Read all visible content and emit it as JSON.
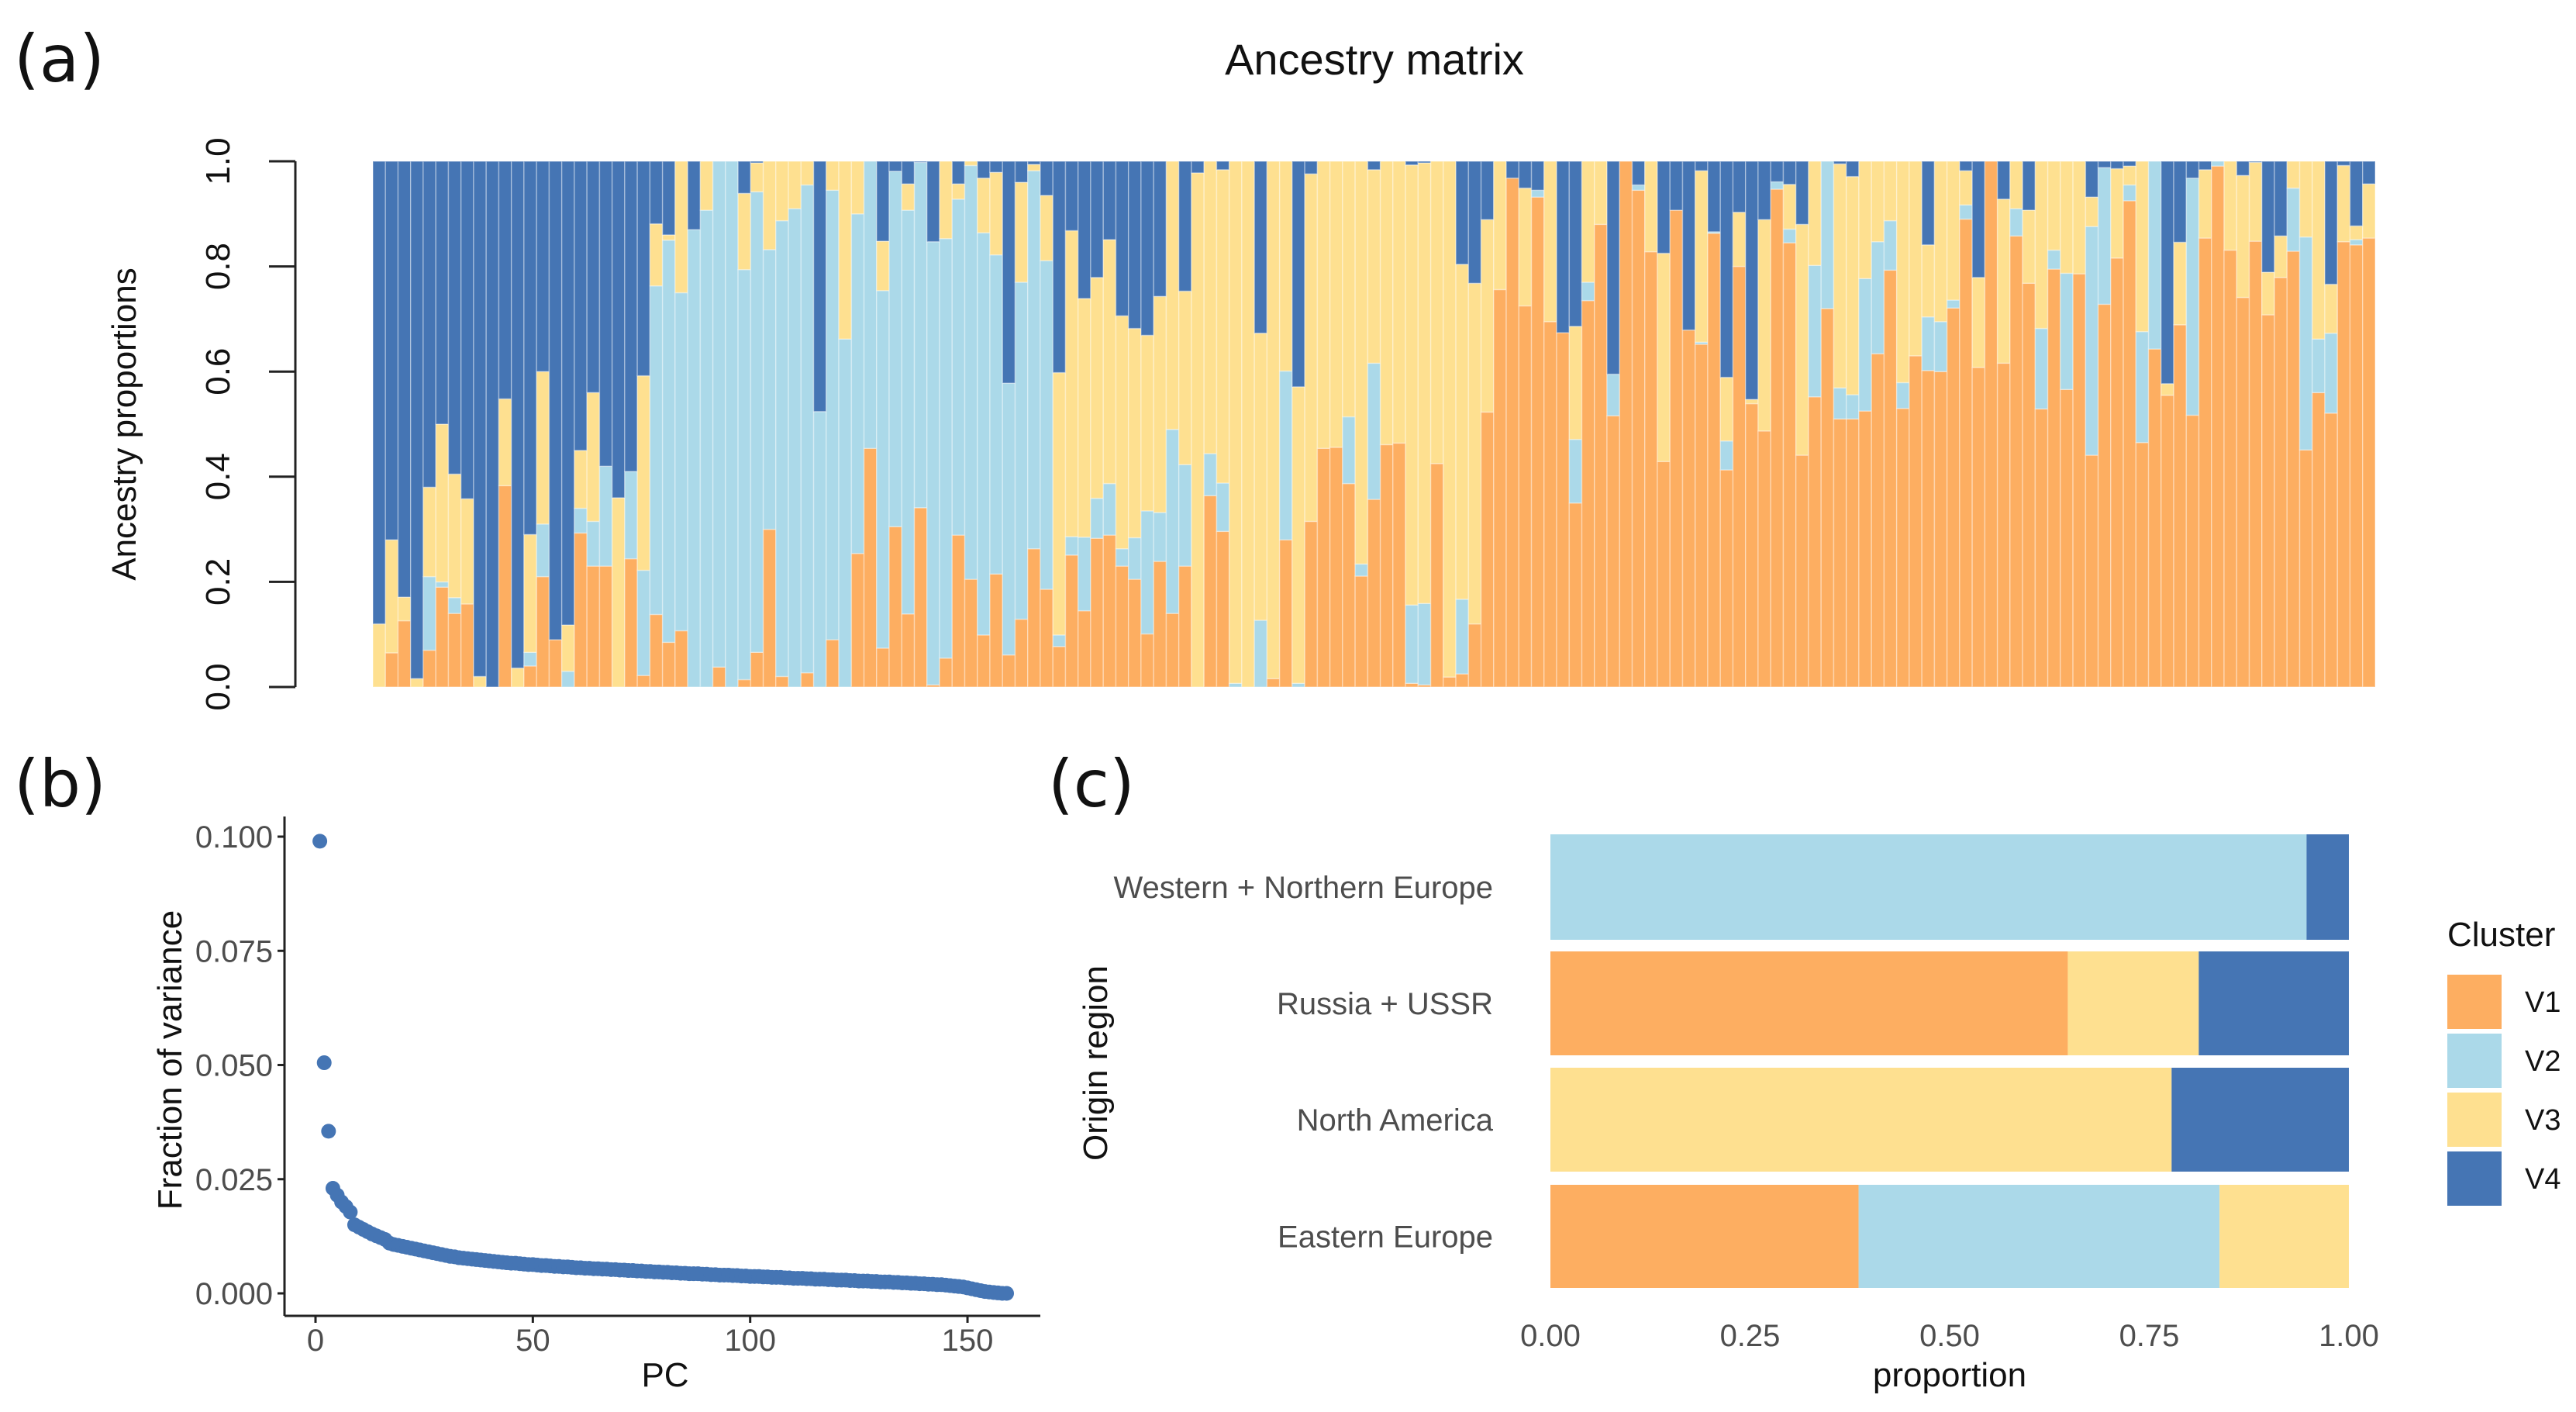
{
  "colors": {
    "V1": "#fdae61",
    "V2": "#abd9e9",
    "V3": "#fee090",
    "V4": "#4575b4"
  },
  "chart_data": [
    {
      "panel": "(a)",
      "type": "bar",
      "stacked": true,
      "title": "Ancestry matrix",
      "xlabel": "",
      "ylabel": "Ancestry proportions",
      "ylim": [
        0,
        1
      ],
      "yticks": [
        "0.0",
        "0.2",
        "0.4",
        "0.6",
        "0.8",
        "1.0"
      ],
      "series_order": [
        "V1",
        "V2",
        "V3",
        "V4"
      ],
      "values": [
        [
          0,
          0,
          0.12,
          0.88
        ],
        [
          0.065,
          0,
          0.215,
          0.72
        ],
        [
          0.126,
          0,
          0.045,
          0.829
        ],
        [
          0,
          0,
          0.016,
          0.984
        ],
        [
          0.07,
          0.14,
          0.17,
          0.62
        ],
        [
          0.19,
          0.01,
          0.3,
          0.5
        ],
        [
          0.14,
          0.03,
          0.235,
          0.595
        ],
        [
          0.158,
          0,
          0.2,
          0.642
        ],
        [
          0,
          0,
          0.02,
          0.98
        ],
        [
          0,
          0,
          0,
          1
        ],
        [
          0.383,
          0,
          0.165,
          0.452
        ],
        [
          0,
          0,
          0.036,
          0.964
        ],
        [
          0.04,
          0.026,
          0.224,
          0.71
        ],
        [
          0.21,
          0.1,
          0.29,
          0.4
        ],
        [
          0.09,
          0,
          0,
          0.91
        ],
        [
          0,
          0.03,
          0.088,
          0.882
        ],
        [
          0.293,
          0.047,
          0.11,
          0.55
        ],
        [
          0.23,
          0.085,
          0.245,
          0.44
        ],
        [
          0.23,
          0.19,
          0,
          0.58
        ],
        [
          0,
          0,
          0.36,
          0.64
        ],
        [
          0.244,
          0.166,
          0,
          0.59
        ],
        [
          0.022,
          0.2,
          0.37,
          0.408
        ],
        [
          0.138,
          0.625,
          0.118,
          0.119
        ],
        [
          0.085,
          0.765,
          0.01,
          0.14
        ],
        [
          0.107,
          0.643,
          0.25,
          0
        ],
        [
          0,
          0.87,
          0,
          0.13
        ],
        [
          0,
          0.907,
          0.093,
          0
        ],
        [
          0.038,
          0.962,
          0,
          0
        ],
        [
          0,
          1,
          0,
          0
        ],
        [
          0.014,
          0.78,
          0.145,
          0.061
        ],
        [
          0.066,
          0.876,
          0.055,
          0.003
        ],
        [
          0.3,
          0.532,
          0.168,
          0
        ],
        [
          0.02,
          0.867,
          0.113,
          0
        ],
        [
          0,
          0.91,
          0.09,
          0
        ],
        [
          0.027,
          0.928,
          0.045,
          0
        ],
        [
          0,
          0.524,
          0,
          0.476
        ],
        [
          0.09,
          0.855,
          0.055,
          0
        ],
        [
          0,
          0.662,
          0.338,
          0
        ],
        [
          0.254,
          0.646,
          0.1,
          0
        ],
        [
          0.454,
          0.546,
          0,
          0
        ],
        [
          0.074,
          0.68,
          0.094,
          0.152
        ],
        [
          0.305,
          0.676,
          0,
          0.019
        ],
        [
          0.139,
          0.768,
          0.05,
          0.043
        ],
        [
          0.341,
          0.657,
          0,
          0.002
        ],
        [
          0.004,
          0.843,
          0,
          0.153
        ],
        [
          0.055,
          0.798,
          0.147,
          0
        ],
        [
          0.289,
          0.639,
          0.029,
          0.043
        ],
        [
          0.205,
          0.787,
          0.008,
          0
        ],
        [
          0.099,
          0.765,
          0.104,
          0.032
        ],
        [
          0.215,
          0.607,
          0.157,
          0.021
        ],
        [
          0.061,
          0.517,
          0,
          0.422
        ],
        [
          0.129,
          0.641,
          0.19,
          0.04
        ],
        [
          0.263,
          0.719,
          0.012,
          0.006
        ],
        [
          0.186,
          0.625,
          0.124,
          0.065
        ],
        [
          0.077,
          0.022,
          0.499,
          0.402
        ],
        [
          0.251,
          0.035,
          0.582,
          0.132
        ],
        [
          0.145,
          0.14,
          0.454,
          0.261
        ],
        [
          0.283,
          0.076,
          0.42,
          0.221
        ],
        [
          0.289,
          0.098,
          0.464,
          0.149
        ],
        [
          0.23,
          0.033,
          0.443,
          0.294
        ],
        [
          0.205,
          0.079,
          0.398,
          0.318
        ],
        [
          0.101,
          0.234,
          0.334,
          0.331
        ],
        [
          0.239,
          0.093,
          0.411,
          0.257
        ],
        [
          0.14,
          0.35,
          0.51,
          0
        ],
        [
          0.23,
          0.193,
          0.33,
          0.247
        ],
        [
          0,
          0,
          0.978,
          0.022
        ],
        [
          0.364,
          0.08,
          0.556,
          0
        ],
        [
          0.296,
          0.092,
          0.596,
          0.016
        ],
        [
          0,
          0.007,
          0.993,
          0
        ],
        [
          0,
          0,
          1,
          0
        ],
        [
          0,
          0.127,
          0.546,
          0.327
        ],
        [
          0.016,
          0,
          0.984,
          0
        ],
        [
          0.28,
          0.321,
          0.399,
          0
        ],
        [
          0,
          0.007,
          0.564,
          0.429
        ],
        [
          0.315,
          0,
          0.661,
          0.024
        ],
        [
          0.454,
          0,
          0.546,
          0
        ],
        [
          0.456,
          0,
          0.544,
          0
        ],
        [
          0.387,
          0.127,
          0.486,
          0
        ],
        [
          0.211,
          0.023,
          0.766,
          0
        ],
        [
          0.357,
          0.259,
          0.368,
          0.016
        ],
        [
          0.461,
          0,
          0.539,
          0
        ],
        [
          0.464,
          0,
          0.536,
          0
        ],
        [
          0.007,
          0.149,
          0.837,
          0.007
        ],
        [
          0.004,
          0.155,
          0.838,
          0.003
        ],
        [
          0.425,
          0,
          0.575,
          0
        ],
        [
          0.019,
          0,
          0.981,
          0
        ],
        [
          0.025,
          0.142,
          0.637,
          0.196
        ],
        [
          0.12,
          0,
          0.648,
          0.232
        ],
        [
          0.523,
          0,
          0.366,
          0.111
        ],
        [
          0.756,
          0,
          0.244,
          0
        ],
        [
          0.968,
          0,
          0,
          0.032
        ],
        [
          0.725,
          0,
          0.224,
          0.051
        ],
        [
          0.932,
          0.013,
          0,
          0.055
        ],
        [
          0.695,
          0,
          0.305,
          0
        ],
        [
          0.674,
          0,
          0,
          0.326
        ],
        [
          0.35,
          0.121,
          0.215,
          0.314
        ],
        [
          0.735,
          0.035,
          0.23,
          0
        ],
        [
          0.88,
          0,
          0.12,
          0
        ],
        [
          0.516,
          0.079,
          0,
          0.405
        ],
        [
          1,
          0,
          0,
          0
        ],
        [
          0.945,
          0.01,
          0,
          0.045
        ],
        [
          0.828,
          0,
          0.172,
          0
        ],
        [
          0.429,
          0,
          0.396,
          0.175
        ],
        [
          0.907,
          0,
          0,
          0.093
        ],
        [
          0.679,
          0,
          0,
          0.321
        ],
        [
          0.652,
          0.004,
          0.326,
          0.018
        ],
        [
          0.863,
          0.003,
          0,
          0.134
        ],
        [
          0.413,
          0.055,
          0.121,
          0.411
        ],
        [
          0.8,
          0,
          0.103,
          0.097
        ],
        [
          0.539,
          0,
          0.008,
          0.453
        ],
        [
          0.487,
          0,
          0.402,
          0.111
        ],
        [
          0.947,
          0.014,
          0,
          0.039
        ],
        [
          0.845,
          0.026,
          0.085,
          0.044
        ],
        [
          0.441,
          0,
          0.439,
          0.12
        ],
        [
          0.552,
          0.25,
          0.198,
          0
        ],
        [
          0.72,
          0.28,
          0,
          0
        ],
        [
          0.51,
          0.059,
          0.426,
          0.005
        ],
        [
          0.51,
          0.046,
          0.415,
          0.029
        ],
        [
          0.525,
          0.252,
          0.223,
          0
        ],
        [
          0.634,
          0.213,
          0.153,
          0
        ],
        [
          0.793,
          0.094,
          0.113,
          0
        ],
        [
          0.53,
          0.049,
          0.421,
          0
        ],
        [
          0.63,
          0,
          0.37,
          0
        ],
        [
          0.602,
          0.102,
          0.137,
          0.159
        ],
        [
          0.6,
          0.095,
          0.305,
          0
        ],
        [
          0.721,
          0.015,
          0.264,
          0
        ],
        [
          0.89,
          0.027,
          0.065,
          0.018
        ],
        [
          0.608,
          0,
          0.171,
          0.221
        ],
        [
          1,
          0,
          0,
          0
        ],
        [
          0.616,
          0,
          0.312,
          0.072
        ],
        [
          0.858,
          0.052,
          0.09,
          0
        ],
        [
          0.768,
          0,
          0.139,
          0.093
        ],
        [
          0.529,
          0.153,
          0.318,
          0
        ],
        [
          0.795,
          0.036,
          0.169,
          0
        ],
        [
          0.566,
          0.221,
          0.213,
          0
        ],
        [
          0.786,
          0,
          0.214,
          0
        ],
        [
          0.441,
          0.435,
          0.056,
          0.068
        ],
        [
          0.728,
          0.26,
          0,
          0.012
        ],
        [
          0.816,
          0,
          0.17,
          0.014
        ],
        [
          0.925,
          0.03,
          0.036,
          0.009
        ],
        [
          0.465,
          0.211,
          0.324,
          0
        ],
        [
          0.643,
          0.357,
          0,
          0
        ],
        [
          0.555,
          0,
          0.022,
          0.423
        ],
        [
          0.689,
          0,
          0.157,
          0.154
        ],
        [
          0.517,
          0.451,
          0,
          0.032
        ],
        [
          0.854,
          0,
          0.13,
          0.016
        ],
        [
          0.991,
          0.009,
          0,
          0
        ],
        [
          0.831,
          0,
          0.169,
          0
        ],
        [
          0.741,
          0,
          0.232,
          0.027
        ],
        [
          0.848,
          0,
          0.15,
          0.002
        ],
        [
          0.708,
          0,
          0.081,
          0.211
        ],
        [
          0.779,
          0,
          0.079,
          0.142
        ],
        [
          0.829,
          0.12,
          0.051,
          0
        ],
        [
          0.451,
          0.405,
          0.144,
          0
        ],
        [
          0.56,
          0.102,
          0.338,
          0
        ],
        [
          0.521,
          0.152,
          0.093,
          0.234
        ],
        [
          0.847,
          0,
          0.145,
          0.008
        ],
        [
          0.841,
          0.01,
          0.026,
          0.123
        ],
        [
          0.854,
          0,
          0.103,
          0.043
        ]
      ]
    },
    {
      "panel": "(b)",
      "type": "scatter",
      "xlabel": "PC",
      "ylabel": "Fraction of variance",
      "xlim": [
        0,
        160
      ],
      "ylim": [
        0,
        0.1
      ],
      "xticks": [
        "0",
        "50",
        "100",
        "150"
      ],
      "yticks": [
        "0.000",
        "0.025",
        "0.050",
        "0.075",
        "0.100"
      ],
      "y": [
        0.099,
        0.0505,
        0.0355,
        0.023,
        0.0215,
        0.02,
        0.019,
        0.0178,
        0.015,
        0.0145,
        0.014,
        0.0135,
        0.013,
        0.0126,
        0.0122,
        0.0118,
        0.011,
        0.0107,
        0.0105,
        0.0103,
        0.0101,
        0.0099,
        0.0097,
        0.0095,
        0.0093,
        0.0091,
        0.0089,
        0.0087,
        0.0085,
        0.0083,
        0.0081,
        0.008,
        0.0078,
        0.0077,
        0.0076,
        0.0075,
        0.0074,
        0.0073,
        0.0072,
        0.0071,
        0.007,
        0.0069,
        0.0068,
        0.0067,
        0.0066,
        0.0066,
        0.0065,
        0.0064,
        0.0063,
        0.0063,
        0.0062,
        0.0061,
        0.0061,
        0.006,
        0.0059,
        0.0059,
        0.0058,
        0.0058,
        0.0057,
        0.0056,
        0.0056,
        0.0055,
        0.0055,
        0.0054,
        0.0054,
        0.0053,
        0.0053,
        0.0052,
        0.0052,
        0.0051,
        0.0051,
        0.005,
        0.005,
        0.0049,
        0.0049,
        0.0048,
        0.0048,
        0.0047,
        0.0047,
        0.0046,
        0.0046,
        0.0045,
        0.0045,
        0.0044,
        0.0044,
        0.0043,
        0.0043,
        0.0043,
        0.0042,
        0.0042,
        0.0041,
        0.0041,
        0.004,
        0.004,
        0.004,
        0.0039,
        0.0039,
        0.0038,
        0.0038,
        0.0037,
        0.0037,
        0.0037,
        0.0036,
        0.0036,
        0.0035,
        0.0035,
        0.0035,
        0.0034,
        0.0034,
        0.0033,
        0.0033,
        0.0033,
        0.0032,
        0.0032,
        0.0031,
        0.0031,
        0.0031,
        0.003,
        0.003,
        0.0029,
        0.0029,
        0.0029,
        0.0028,
        0.0028,
        0.0027,
        0.0027,
        0.0027,
        0.0026,
        0.0026,
        0.0025,
        0.0025,
        0.0025,
        0.0024,
        0.0024,
        0.0023,
        0.0023,
        0.0022,
        0.0022,
        0.0021,
        0.0021,
        0.002,
        0.002,
        0.0019,
        0.0019,
        0.0018,
        0.0017,
        0.0016,
        0.0015,
        0.0014,
        0.0012,
        0.001,
        0.0008,
        0.0006,
        0.0004,
        0.0003,
        0.0002,
        0.0001,
        0,
        0
      ]
    },
    {
      "panel": "(c)",
      "type": "bar",
      "orientation": "horizontal",
      "stacked": true,
      "xlabel": "proportion",
      "ylabel": "Origin region",
      "xlim": [
        0,
        1
      ],
      "xticks": [
        "0.00",
        "0.25",
        "0.50",
        "0.75",
        "1.00"
      ],
      "categories": [
        "Western + Northern Europe",
        "Russia + USSR",
        "North America",
        "Eastern Europe"
      ],
      "series": [
        {
          "name": "V1",
          "values": [
            0,
            0.648,
            0,
            0.386
          ]
        },
        {
          "name": "V2",
          "values": [
            0.947,
            0,
            0,
            0.452
          ]
        },
        {
          "name": "V3",
          "values": [
            0,
            0.164,
            0.778,
            0.162
          ]
        },
        {
          "name": "V4",
          "values": [
            0.053,
            0.188,
            0.222,
            0
          ]
        }
      ],
      "legend": {
        "title": "Cluster",
        "entries": [
          "V1",
          "V2",
          "V3",
          "V4"
        ],
        "placement": "right"
      }
    }
  ]
}
